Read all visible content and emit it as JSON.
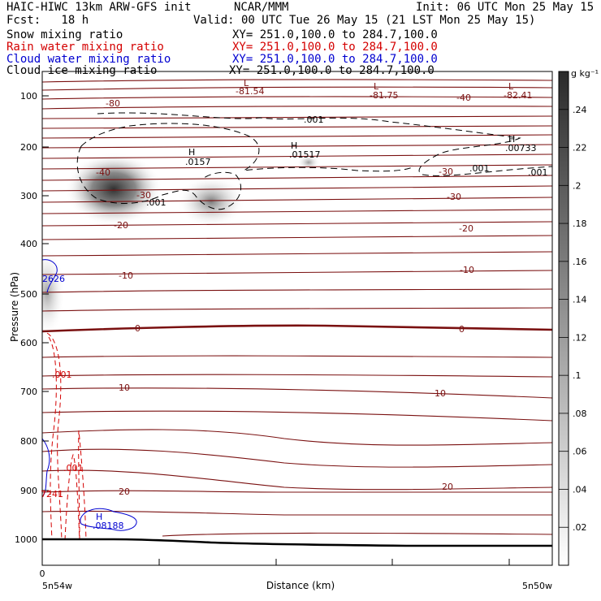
{
  "header": {
    "model_title": "HAIC-HIWC 13km ARW-GFS init",
    "org": "NCAR/MMM",
    "init": "Init: 06 UTC Mon 25 May 15",
    "fcst": "Fcst:   18 h",
    "valid": "Valid: 00 UTC Tue 26 May 15 (21 LST Mon 25 May 15)"
  },
  "fields": [
    {
      "label": "Snow mixing ratio",
      "xy": "XY= 251.0,100.0 to 284.7,100.0",
      "color": "#000000"
    },
    {
      "label": "Rain water mixing ratio",
      "xy": "XY= 251.0,100.0 to 284.7,100.0",
      "color": "#d40000"
    },
    {
      "label": "Cloud water mixing ratio",
      "xy": "XY= 251.0,100.0 to 284.7,100.0",
      "color": "#0000d0"
    },
    {
      "label": "Cloud ice mixing ratio",
      "xy": "XY= 251.0,100.0 to 284.7,100.0",
      "color": "#000000"
    }
  ],
  "chart_data": {
    "type": "heatmap",
    "ylabel": "Pressure (hPa)",
    "xlabel": "Distance (km)",
    "x_start_label": "5n54w",
    "x_end_label": "5n50w",
    "x_origin_label": "0",
    "yticks": [
      "100",
      "200",
      "300",
      "400",
      "500",
      "600",
      "700",
      "800",
      "900",
      "1000"
    ],
    "colorbar_unit": "g kg⁻¹",
    "colorbar_ticks": [
      ".02",
      ".04",
      ".06",
      ".08",
      ".1",
      ".12",
      ".14",
      ".16",
      ".18",
      ".2",
      ".22",
      ".24"
    ],
    "temperature_contour_labels": [
      "-80",
      "-40",
      "-30",
      "-20",
      "-10",
      "0",
      "10",
      "20",
      "-20",
      "-30",
      "-40",
      "-80",
      "-30",
      "-20",
      "-10",
      "0",
      "10",
      "20"
    ],
    "lows": [
      {
        "symbol": "L",
        "value": "-81.54"
      },
      {
        "symbol": "L",
        "value": "-81.75"
      },
      {
        "symbol": "L",
        "value": "-82.41"
      }
    ],
    "ice_highs": [
      {
        "symbol": "H",
        "value": ".0157"
      },
      {
        "symbol": "H",
        "value": ".01517"
      },
      {
        "symbol": "H",
        "value": ".00733"
      }
    ],
    "ice_contour_labels": [
      ".001",
      ".001",
      ".001",
      ".001"
    ],
    "rain_contour_labels": [
      ".001",
      ".001"
    ],
    "rain_labels": [
      "7241"
    ],
    "cloud_water_labels": [
      "2626"
    ],
    "cloud_water_high": {
      "symbol": "H",
      "value": ".08188"
    }
  }
}
